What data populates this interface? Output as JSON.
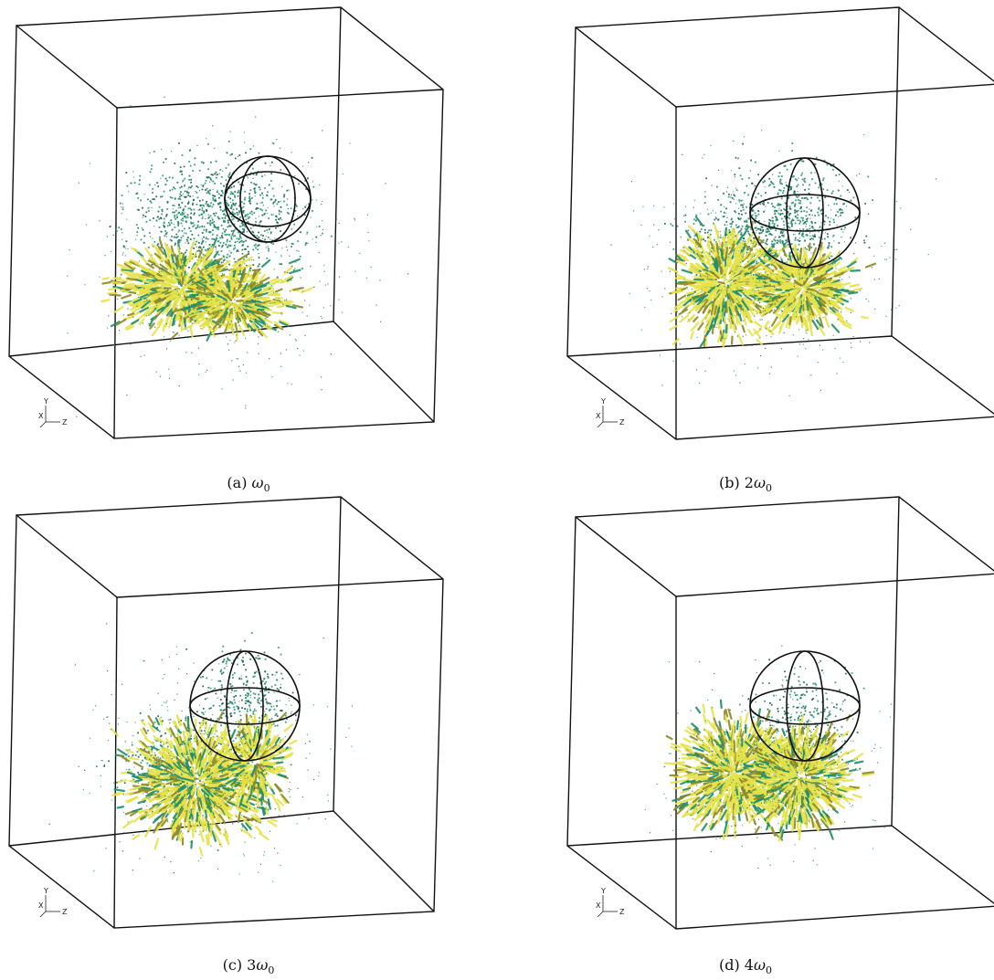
{
  "figure": {
    "panels": [
      {
        "id": "a",
        "letter": "(a)",
        "coef": "",
        "sym": "ω",
        "sub": "0"
      },
      {
        "id": "b",
        "letter": "(b)",
        "coef": "2",
        "sym": "ω",
        "sub": "0"
      },
      {
        "id": "c",
        "letter": "(c)",
        "coef": "3",
        "sym": "ω",
        "sub": "0"
      },
      {
        "id": "d",
        "letter": "(d)",
        "coef": "4",
        "sym": "ω",
        "sub": "0"
      }
    ],
    "axis_labels": {
      "x": "X",
      "y": "Y",
      "z": "Z"
    },
    "colors": {
      "frame": "#111111",
      "green": "#1f8f6a",
      "dark_green": "#0f5f48",
      "yellow": "#e6e34a",
      "olive": "#8f8a2a"
    }
  }
}
